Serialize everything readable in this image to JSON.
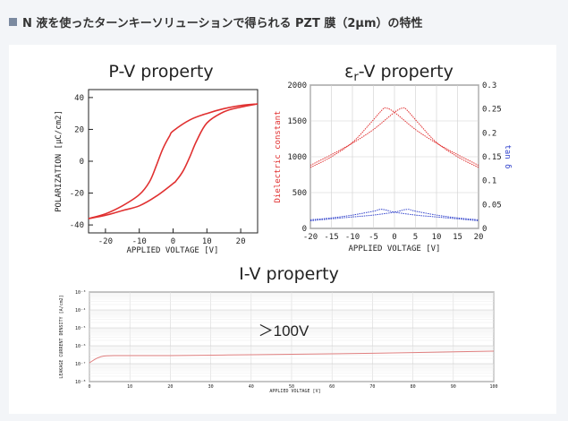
{
  "header": {
    "title": "N 液を使ったターンキーソリューションで得られる PZT 膜（2μm）の特性"
  },
  "chart_data": [
    {
      "type": "line",
      "title": "P-V property",
      "xlabel": "APPLIED VOLTAGE [V]",
      "ylabel": "POLARIZATION [μC/cm2]",
      "xlim": [
        -25,
        25
      ],
      "ylim": [
        -45,
        45
      ],
      "xticks": [
        "-20",
        "-10",
        "0",
        "10",
        "20"
      ],
      "yticks": [
        "40",
        "20",
        "0",
        "-20",
        "-40"
      ],
      "grid": false,
      "color": "#e03030",
      "series": [
        {
          "values": [
            [
              -25,
              -36
            ],
            [
              -20,
              -33
            ],
            [
              -15,
              -28
            ],
            [
              -10,
              -21
            ],
            [
              -7,
              -13
            ],
            [
              -5,
              -3
            ],
            [
              -3,
              8
            ],
            [
              -1,
              16
            ],
            [
              0,
              19
            ],
            [
              5,
              26
            ],
            [
              10,
              30
            ],
            [
              15,
              33
            ],
            [
              20,
              35
            ],
            [
              25,
              36
            ]
          ]
        },
        {
          "values": [
            [
              25,
              36
            ],
            [
              20,
              34
            ],
            [
              15,
              31
            ],
            [
              10,
              24
            ],
            [
              7,
              13
            ],
            [
              5,
              3
            ],
            [
              3,
              -6
            ],
            [
              1,
              -12
            ],
            [
              0,
              -14
            ],
            [
              -5,
              -22
            ],
            [
              -10,
              -28
            ],
            [
              -15,
              -31
            ],
            [
              -20,
              -34
            ],
            [
              -25,
              -36
            ]
          ]
        }
      ]
    },
    {
      "type": "line",
      "title": "εr-V property",
      "title_main": "ε",
      "title_sub": "r",
      "title_rest": "-V property",
      "xlabel": "APPLIED VOLTAGE [V]",
      "ylabel": "Dielectric constant",
      "ylabel_right": "tan δ",
      "xlim": [
        -20,
        20
      ],
      "ylim": [
        0,
        2000
      ],
      "ylim_right": [
        0,
        0.3
      ],
      "xticks": [
        "-20",
        "-15",
        "-10",
        "-5",
        "0",
        "5",
        "10",
        "15",
        "20"
      ],
      "yticks": [
        "2000",
        "1500",
        "1000",
        "500",
        "0"
      ],
      "yticks_right": [
        "0.3",
        "0.25",
        "0.2",
        "0.15",
        "0.1",
        "0.05",
        "0"
      ],
      "grid": true,
      "series": [
        {
          "axis": "left",
          "color": "#e03030",
          "values": [
            [
              -20,
              850
            ],
            [
              -15,
              1000
            ],
            [
              -10,
              1200
            ],
            [
              -6,
              1450
            ],
            [
              -3,
              1650
            ],
            [
              -2,
              1680
            ],
            [
              0,
              1620
            ],
            [
              5,
              1380
            ],
            [
              10,
              1190
            ],
            [
              15,
              1030
            ],
            [
              20,
              880
            ]
          ]
        },
        {
          "axis": "left",
          "color": "#e03030",
          "values": [
            [
              -20,
              880
            ],
            [
              -15,
              1030
            ],
            [
              -10,
              1190
            ],
            [
              -5,
              1380
            ],
            [
              0,
              1620
            ],
            [
              2,
              1680
            ],
            [
              3,
              1650
            ],
            [
              6,
              1450
            ],
            [
              10,
              1200
            ],
            [
              15,
              1000
            ],
            [
              20,
              850
            ]
          ]
        },
        {
          "axis": "right",
          "color": "#3344cc",
          "values": [
            [
              -20,
              0.018
            ],
            [
              -15,
              0.022
            ],
            [
              -10,
              0.028
            ],
            [
              -5,
              0.036
            ],
            [
              -3,
              0.04
            ],
            [
              0,
              0.034
            ],
            [
              5,
              0.028
            ],
            [
              10,
              0.024
            ],
            [
              15,
              0.02
            ],
            [
              20,
              0.016
            ]
          ]
        },
        {
          "axis": "right",
          "color": "#3344cc",
          "values": [
            [
              -20,
              0.016
            ],
            [
              -15,
              0.02
            ],
            [
              -10,
              0.024
            ],
            [
              -5,
              0.028
            ],
            [
              0,
              0.034
            ],
            [
              3,
              0.04
            ],
            [
              5,
              0.036
            ],
            [
              10,
              0.028
            ],
            [
              15,
              0.022
            ],
            [
              20,
              0.018
            ]
          ]
        }
      ]
    },
    {
      "type": "line",
      "title": "I-V property",
      "annotation": "＞100V",
      "xlabel": "APPLIED VOLTAGE [V]",
      "ylabel": "LEAKAGE CURRENT DENSITY [A/cm2]",
      "xlim": [
        0,
        100
      ],
      "ylim_exp": [
        -8,
        -3
      ],
      "xticks": [
        "0",
        "10",
        "20",
        "30",
        "40",
        "50",
        "60",
        "70",
        "80",
        "90",
        "100"
      ],
      "yticks": [
        "10⁻³",
        "10⁻⁴",
        "10⁻⁵",
        "10⁻⁶",
        "10⁻⁷",
        "10⁻⁸"
      ],
      "grid": true,
      "color": "#e08080",
      "series": [
        {
          "values": [
            [
              0,
              -6.95
            ],
            [
              3,
              -6.6
            ],
            [
              8,
              -6.55
            ],
            [
              20,
              -6.55
            ],
            [
              40,
              -6.5
            ],
            [
              60,
              -6.45
            ],
            [
              80,
              -6.38
            ],
            [
              100,
              -6.3
            ]
          ]
        }
      ]
    }
  ]
}
